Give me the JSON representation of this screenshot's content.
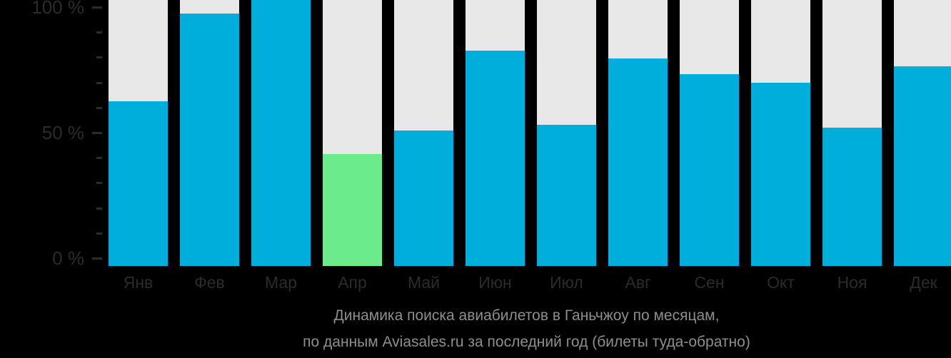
{
  "chart_data": {
    "type": "bar",
    "title": "Динамика поиска авиабилетов в Ганьчжоу по месяцам,",
    "subtitle": "по данным Aviasales.ru за последний год (билеты туда-обратно)",
    "categories": [
      "Янв",
      "Фев",
      "Мар",
      "Апр",
      "Май",
      "Июн",
      "Июл",
      "Авг",
      "Сен",
      "Окт",
      "Ноя",
      "Дек"
    ],
    "values": [
      62,
      95,
      100,
      42,
      51,
      81,
      53,
      78,
      72,
      69,
      52,
      75
    ],
    "unit": "%",
    "highlight_month": "Апр",
    "ylabel": "",
    "xlabel": "",
    "ylim": [
      0,
      100
    ],
    "yticks_labels": [
      "100 %",
      "50 %",
      "0 %"
    ],
    "yticks_values": [
      100,
      50,
      0
    ],
    "minor_tick_step": 10,
    "grid": "off",
    "legend": "none",
    "colors": {
      "background": "#000000",
      "bar": "#00AEDC",
      "highlight": "#6BEB8B",
      "track": "#E8E8E8",
      "axis_text": "#2B2B2B",
      "caption_text": "#8E8E8E"
    }
  }
}
